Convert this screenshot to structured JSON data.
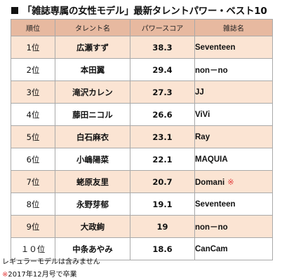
{
  "title": "「雑誌専属の女性モデル」最新タレントパワー・ベスト10",
  "table": {
    "headers": [
      "順位",
      "タレント名",
      "パワースコア",
      "雑誌名"
    ],
    "rows": [
      {
        "rank": "1位",
        "name": "広瀬すず",
        "score": "38.3",
        "magazine": "Seventeen",
        "mark": ""
      },
      {
        "rank": "2位",
        "name": "本田翼",
        "score": "29.4",
        "magazine": "non－no",
        "mark": ""
      },
      {
        "rank": "3位",
        "name": "滝沢カレン",
        "score": "27.3",
        "magazine": "JJ",
        "mark": ""
      },
      {
        "rank": "4位",
        "name": "藤田ニコル",
        "score": "26.6",
        "magazine": "ViVi",
        "mark": ""
      },
      {
        "rank": "5位",
        "name": "白石麻衣",
        "score": "23.1",
        "magazine": "Ray",
        "mark": ""
      },
      {
        "rank": "6位",
        "name": "小嶋陽菜",
        "score": "22.1",
        "magazine": "MAQUIA",
        "mark": ""
      },
      {
        "rank": "7位",
        "name": "蛯原友里",
        "score": "20.7",
        "magazine": "Domani",
        "mark": "※"
      },
      {
        "rank": "8位",
        "name": "永野芽郁",
        "score": "19.1",
        "magazine": "Seventeen",
        "mark": ""
      },
      {
        "rank": "9位",
        "name": "大政絢",
        "score": "19",
        "magazine": "non－no",
        "mark": ""
      },
      {
        "rank": "１０位",
        "name": "中条あやみ",
        "score": "18.6",
        "magazine": "CanCam",
        "mark": ""
      }
    ]
  },
  "notes": {
    "note1": "レギュラーモデルは含みません",
    "note2_mark": "※",
    "note2_text": "2017年12月号で卒業"
  },
  "colors": {
    "header_bg": "#e7b9a0",
    "odd_row_bg": "#fbe4d3",
    "even_row_bg": "#ffffff",
    "mark_red": "#e33a3a"
  }
}
